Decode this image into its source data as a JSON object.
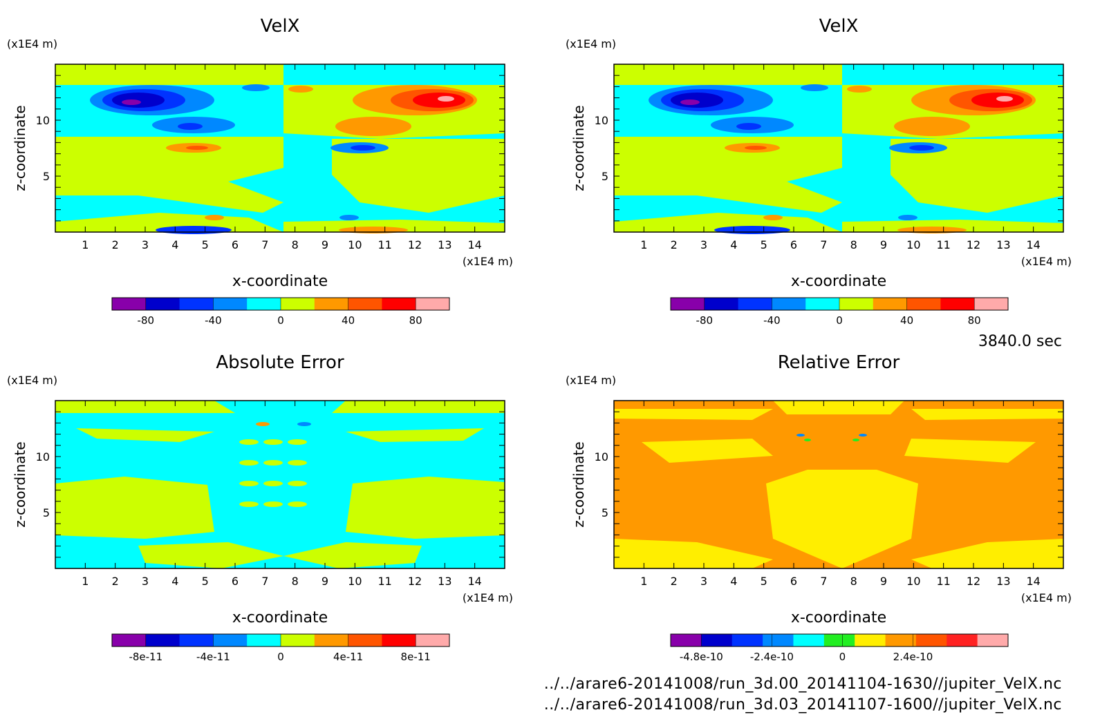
{
  "time_label": "3840.0 sec",
  "footer": {
    "file_1": "../../arare6-20141008/run_3d.00_20141104-1630//jupiter_VelX.nc",
    "file_2": "../../arare6-20141008/run_3d.03_20141107-1600//jupiter_VelX.nc"
  },
  "colors": {
    "cyan": "#00ffff",
    "yellowgreen": "#ccff00",
    "blue": "#0066ee",
    "darkblue": "#0000cc",
    "purple": "#8800aa",
    "orange": "#ff9900",
    "red": "#ff0000",
    "pink": "#ffaaaa",
    "yellow": "#ffee00"
  },
  "chart_data": [
    {
      "type": "heatmap",
      "title": "VelX",
      "xlabel": "x-coordinate",
      "ylabel": "z-coordinate",
      "x_unit": "(x1E4 m)",
      "y_unit": "(x1E4 m)",
      "xlim": [
        0,
        15
      ],
      "ylim": [
        0,
        15
      ],
      "x_ticks": [
        "1",
        "2",
        "3",
        "4",
        "5",
        "6",
        "7",
        "8",
        "9",
        "10",
        "11",
        "12",
        "13",
        "14"
      ],
      "y_ticks": [
        "5",
        "10"
      ],
      "colorbar": {
        "colors": [
          "#8800aa",
          "#0000cc",
          "#0033ff",
          "#0088ff",
          "#00ffff",
          "#ccff00",
          "#ff9900",
          "#ff5500",
          "#ff0000",
          "#ffaaaa"
        ],
        "labels": [
          "-80",
          "-40",
          "0",
          "40",
          "80"
        ]
      }
    },
    {
      "type": "heatmap",
      "title": "VelX",
      "xlabel": "x-coordinate",
      "ylabel": "z-coordinate",
      "x_unit": "(x1E4 m)",
      "y_unit": "(x1E4 m)",
      "xlim": [
        0,
        15
      ],
      "ylim": [
        0,
        15
      ],
      "x_ticks": [
        "1",
        "2",
        "3",
        "4",
        "5",
        "6",
        "7",
        "8",
        "9",
        "10",
        "11",
        "12",
        "13",
        "14"
      ],
      "y_ticks": [
        "5",
        "10"
      ],
      "colorbar": {
        "colors": [
          "#8800aa",
          "#0000cc",
          "#0033ff",
          "#0088ff",
          "#00ffff",
          "#ccff00",
          "#ff9900",
          "#ff5500",
          "#ff0000",
          "#ffaaaa"
        ],
        "labels": [
          "-80",
          "-40",
          "0",
          "40",
          "80"
        ]
      }
    },
    {
      "type": "heatmap",
      "title": "Absolute Error",
      "xlabel": "x-coordinate",
      "ylabel": "z-coordinate",
      "x_unit": "(x1E4 m)",
      "y_unit": "(x1E4 m)",
      "xlim": [
        0,
        15
      ],
      "ylim": [
        0,
        15
      ],
      "x_ticks": [
        "1",
        "2",
        "3",
        "4",
        "5",
        "6",
        "7",
        "8",
        "9",
        "10",
        "11",
        "12",
        "13",
        "14"
      ],
      "y_ticks": [
        "5",
        "10"
      ],
      "colorbar": {
        "colors": [
          "#8800aa",
          "#0000cc",
          "#0033ff",
          "#0088ff",
          "#00ffff",
          "#ccff00",
          "#ff9900",
          "#ff5500",
          "#ff0000",
          "#ffaaaa"
        ],
        "labels": [
          "-8e-11",
          "-4e-11",
          "0",
          "4e-11",
          "8e-11"
        ]
      }
    },
    {
      "type": "heatmap",
      "title": "Relative Error",
      "xlabel": "x-coordinate",
      "ylabel": "z-coordinate",
      "x_unit": "(x1E4 m)",
      "y_unit": "(x1E4 m)",
      "xlim": [
        0,
        15
      ],
      "ylim": [
        0,
        15
      ],
      "x_ticks": [
        "1",
        "2",
        "3",
        "4",
        "5",
        "6",
        "7",
        "8",
        "9",
        "10",
        "11",
        "12",
        "13",
        "14"
      ],
      "y_ticks": [
        "5",
        "10"
      ],
      "colorbar": {
        "colors": [
          "#8800aa",
          "#0000cc",
          "#0033ff",
          "#0088ff",
          "#00ffff",
          "#22ee22",
          "#ffee00",
          "#ff9900",
          "#ff5500",
          "#ff2222",
          "#ffaaaa"
        ],
        "labels": [
          "-4.8e-10",
          "-2.4e-10",
          "0",
          "2.4e-10"
        ]
      }
    }
  ]
}
